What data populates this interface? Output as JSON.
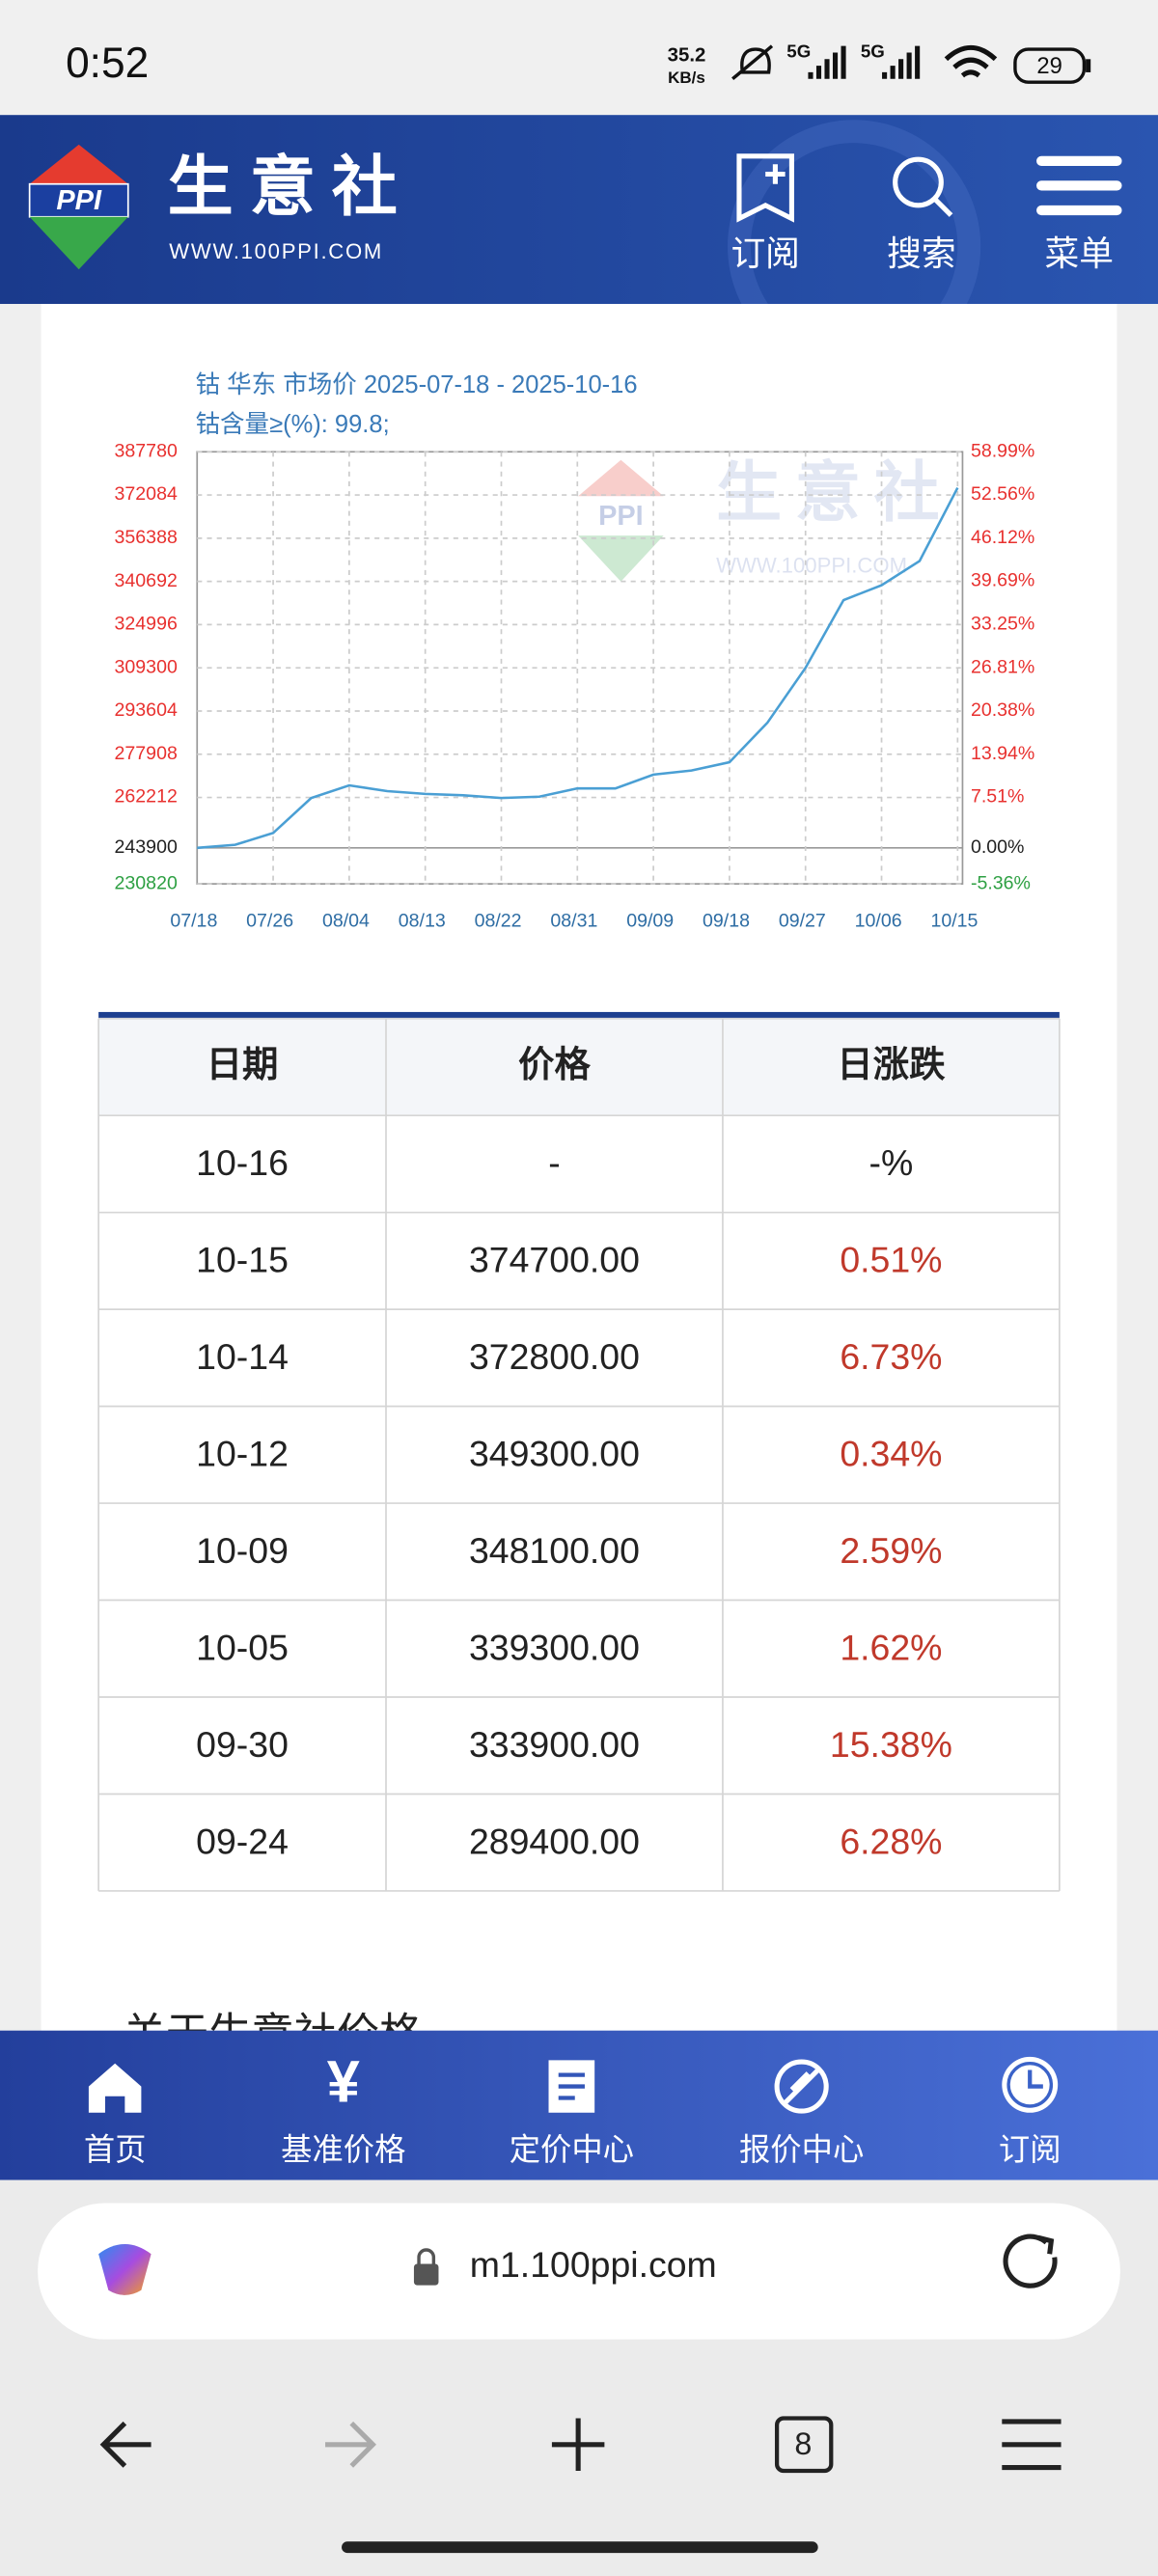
{
  "status_bar": {
    "time": "0:52",
    "speed": "35.2",
    "speed_unit": "KB/s",
    "network_1": "5G",
    "network_2": "5G",
    "battery": "29"
  },
  "header": {
    "logo": "PPI",
    "brand": "生意社",
    "url": "WWW.100PPI.COM",
    "nav": [
      "订阅",
      "搜索",
      "菜单"
    ]
  },
  "chart_data": {
    "type": "line",
    "title": "钴 华东 市场价 2025-07-18 - 2025-10-16",
    "subtitle": "钴含量≥(%): 99.8;",
    "watermark": {
      "logo": "PPI",
      "brand": "生意社",
      "url": "WWW.100PPI.COM"
    },
    "categories": [
      "07/18",
      null,
      "07/26",
      null,
      "08/04",
      null,
      "08/13",
      null,
      "08/22",
      null,
      "08/31",
      null,
      "09/09",
      null,
      "09/18",
      null,
      "09/27",
      null,
      "10/06",
      null,
      "10/15"
    ],
    "values": [
      243900,
      245000,
      249300,
      262000,
      266600,
      264500,
      263500,
      263000,
      262000,
      262500,
      265500,
      265500,
      270500,
      272000,
      275000,
      289400,
      309300,
      333900,
      339300,
      348100,
      374700
    ],
    "color": "#4a9fd4",
    "ylim": [
      230820,
      387780
    ],
    "yticks": [
      230820,
      243900,
      262212,
      277908,
      293604,
      309300,
      324996,
      340692,
      356388,
      372084,
      387780
    ],
    "y2lim": [
      -5.36,
      58.99
    ],
    "y2ticks": [
      {
        "value": -5.36,
        "label": "-5.36%"
      },
      {
        "value": 0,
        "label": "0.00%"
      },
      {
        "value": 7.51,
        "label": "7.51%"
      },
      {
        "value": 13.94,
        "label": "13.94%"
      },
      {
        "value": 20.38,
        "label": "20.38%"
      },
      {
        "value": 26.81,
        "label": "26.81%"
      },
      {
        "value": 33.25,
        "label": "33.25%"
      },
      {
        "value": 39.69,
        "label": "39.69%"
      },
      {
        "value": 46.12,
        "label": "46.12%"
      },
      {
        "value": 52.56,
        "label": "52.56%"
      },
      {
        "value": 58.99,
        "label": "58.99%"
      }
    ],
    "base": 243900,
    "up_color": "#e8312f",
    "down_color": "#2ea043",
    "base_color": "#222222",
    "grid": true
  },
  "table": {
    "header": [
      "日期",
      "价格",
      "日涨跌"
    ],
    "rows": [
      [
        "10-16",
        "-",
        "-%"
      ],
      [
        "10-15",
        "374700.00",
        "0.51%"
      ],
      [
        "10-14",
        "372800.00",
        "6.73%"
      ],
      [
        "10-12",
        "349300.00",
        "0.34%"
      ],
      [
        "10-09",
        "348100.00",
        "2.59%"
      ],
      [
        "10-05",
        "339300.00",
        "1.62%"
      ],
      [
        "09-30",
        "333900.00",
        "15.38%"
      ],
      [
        "09-24",
        "289400.00",
        "6.28%"
      ]
    ]
  },
  "section_heading": "关于生意社价格",
  "bottom_nav": [
    "首页",
    "基准价格",
    "定价中心",
    "报价中心",
    "订阅"
  ],
  "browser": {
    "url": "m1.100ppi.com",
    "tabs": "8"
  }
}
